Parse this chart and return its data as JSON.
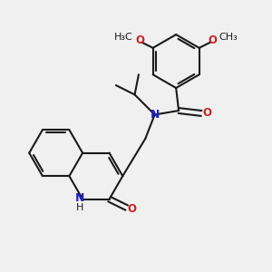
{
  "bg_color": "#f0f0f0",
  "bond_color": "#1a1a1a",
  "bond_width": 1.5,
  "N_color": "#2222cc",
  "O_color": "#cc2222",
  "font_size": 8.5,
  "fig_size": [
    3.0,
    3.0
  ],
  "dpi": 100,
  "xlim": [
    0,
    10
  ],
  "ylim": [
    0,
    10
  ]
}
